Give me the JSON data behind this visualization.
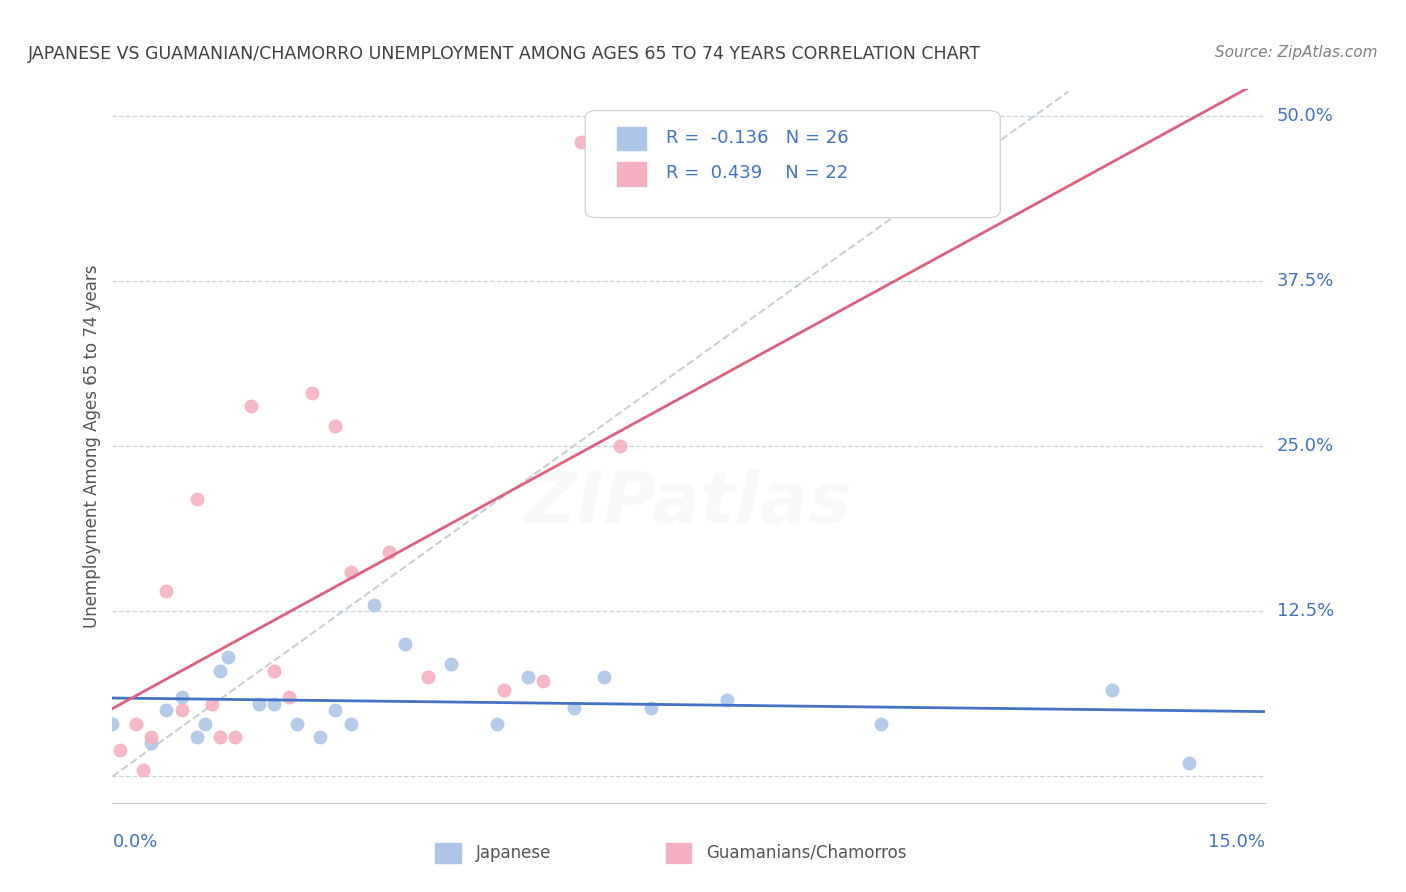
{
  "title": "JAPANESE VS GUAMANIAN/CHAMORRO UNEMPLOYMENT AMONG AGES 65 TO 74 YEARS CORRELATION CHART",
  "source": "Source: ZipAtlas.com",
  "ylabel": "Unemployment Among Ages 65 to 74 years",
  "y_ticks": [
    0.0,
    0.125,
    0.25,
    0.375,
    0.5
  ],
  "y_tick_labels": [
    "",
    "12.5%",
    "25.0%",
    "37.5%",
    "50.0%"
  ],
  "x_range": [
    0.0,
    0.15
  ],
  "y_range": [
    -0.02,
    0.52
  ],
  "japanese_R": -0.136,
  "japanese_N": 26,
  "guamanian_R": 0.439,
  "guamanian_N": 22,
  "japanese_color": "#adc6e8",
  "guamanian_color": "#f5afc0",
  "japanese_line_color": "#4472c4",
  "guamanian_line_color": "#e06080",
  "background_color": "#ffffff",
  "grid_color": "#c8d4dc",
  "title_color": "#404040",
  "axis_label_color": "#4472c4",
  "R_value_color": "#4472c4",
  "watermark_color": "#c8d0dc",
  "japanese_points": [
    [
      0.0,
      0.04
    ],
    [
      0.005,
      0.025
    ],
    [
      0.007,
      0.05
    ],
    [
      0.009,
      0.06
    ],
    [
      0.011,
      0.03
    ],
    [
      0.012,
      0.04
    ],
    [
      0.014,
      0.08
    ],
    [
      0.015,
      0.09
    ],
    [
      0.019,
      0.055
    ],
    [
      0.021,
      0.055
    ],
    [
      0.024,
      0.04
    ],
    [
      0.027,
      0.03
    ],
    [
      0.029,
      0.05
    ],
    [
      0.031,
      0.04
    ],
    [
      0.034,
      0.13
    ],
    [
      0.038,
      0.1
    ],
    [
      0.044,
      0.085
    ],
    [
      0.05,
      0.04
    ],
    [
      0.054,
      0.075
    ],
    [
      0.06,
      0.052
    ],
    [
      0.064,
      0.075
    ],
    [
      0.07,
      0.052
    ],
    [
      0.08,
      0.058
    ],
    [
      0.1,
      0.04
    ],
    [
      0.13,
      0.065
    ],
    [
      0.14,
      0.01
    ]
  ],
  "guamanian_points": [
    [
      0.001,
      0.02
    ],
    [
      0.003,
      0.04
    ],
    [
      0.004,
      0.005
    ],
    [
      0.005,
      0.03
    ],
    [
      0.007,
      0.14
    ],
    [
      0.009,
      0.05
    ],
    [
      0.011,
      0.21
    ],
    [
      0.013,
      0.055
    ],
    [
      0.014,
      0.03
    ],
    [
      0.016,
      0.03
    ],
    [
      0.018,
      0.28
    ],
    [
      0.021,
      0.08
    ],
    [
      0.023,
      0.06
    ],
    [
      0.026,
      0.29
    ],
    [
      0.029,
      0.265
    ],
    [
      0.031,
      0.155
    ],
    [
      0.036,
      0.17
    ],
    [
      0.041,
      0.075
    ],
    [
      0.051,
      0.065
    ],
    [
      0.056,
      0.072
    ],
    [
      0.061,
      0.48
    ],
    [
      0.066,
      0.25
    ]
  ]
}
